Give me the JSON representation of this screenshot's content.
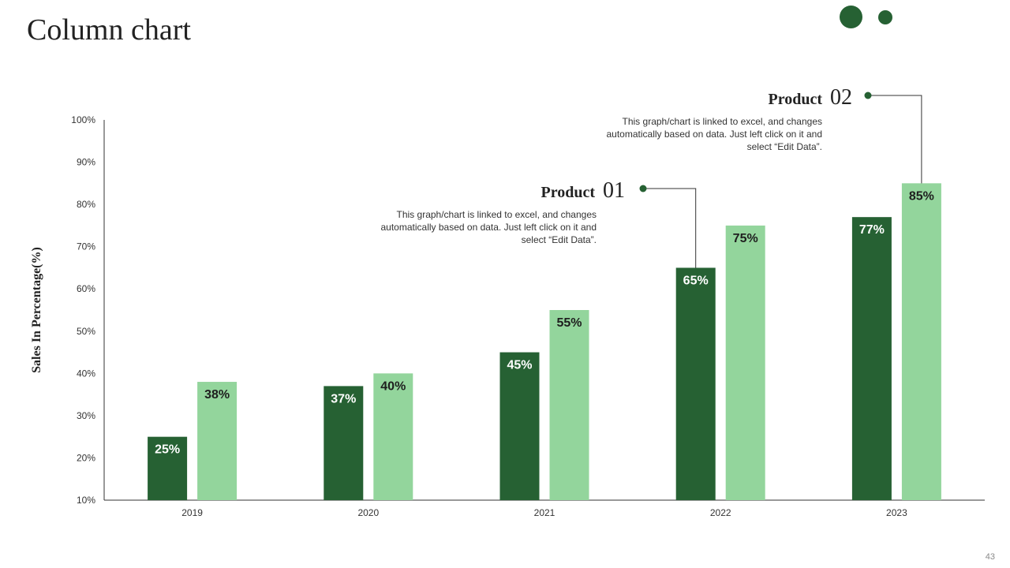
{
  "slide": {
    "title": "Column chart",
    "page_number": "43"
  },
  "colors": {
    "dark_green": "#266133",
    "light_green": "#93d59c",
    "axis": "#333333"
  },
  "callouts": [
    {
      "name": "Product",
      "number": "01",
      "description": "This graph/chart is linked to excel, and changes automatically based on data. Just left click on it and select “Edit Data”."
    },
    {
      "name": "Product",
      "number": "02",
      "description": "This graph/chart is linked to excel, and changes automatically based on data. Just left click on it and select “Edit Data”."
    }
  ],
  "chart_data": {
    "type": "bar",
    "title": "",
    "xlabel": "",
    "ylabel": "Sales In Percentage(%)",
    "ylim": [
      10,
      100
    ],
    "yticks": [
      10,
      20,
      30,
      40,
      50,
      60,
      70,
      80,
      90,
      100
    ],
    "ytick_labels": [
      "10%",
      "20%",
      "30%",
      "40%",
      "50%",
      "60%",
      "70%",
      "80%",
      "90%",
      "100%"
    ],
    "categories": [
      "2019",
      "2020",
      "2021",
      "2022",
      "2023"
    ],
    "series": [
      {
        "name": "Product 01",
        "values": [
          25,
          37,
          45,
          65,
          77
        ],
        "labels": [
          "25%",
          "37%",
          "45%",
          "65%",
          "77%"
        ]
      },
      {
        "name": "Product 02",
        "values": [
          38,
          40,
          55,
          75,
          85
        ],
        "labels": [
          "38%",
          "40%",
          "55%",
          "75%",
          "85%"
        ]
      }
    ],
    "grid": false,
    "legend": "none"
  }
}
